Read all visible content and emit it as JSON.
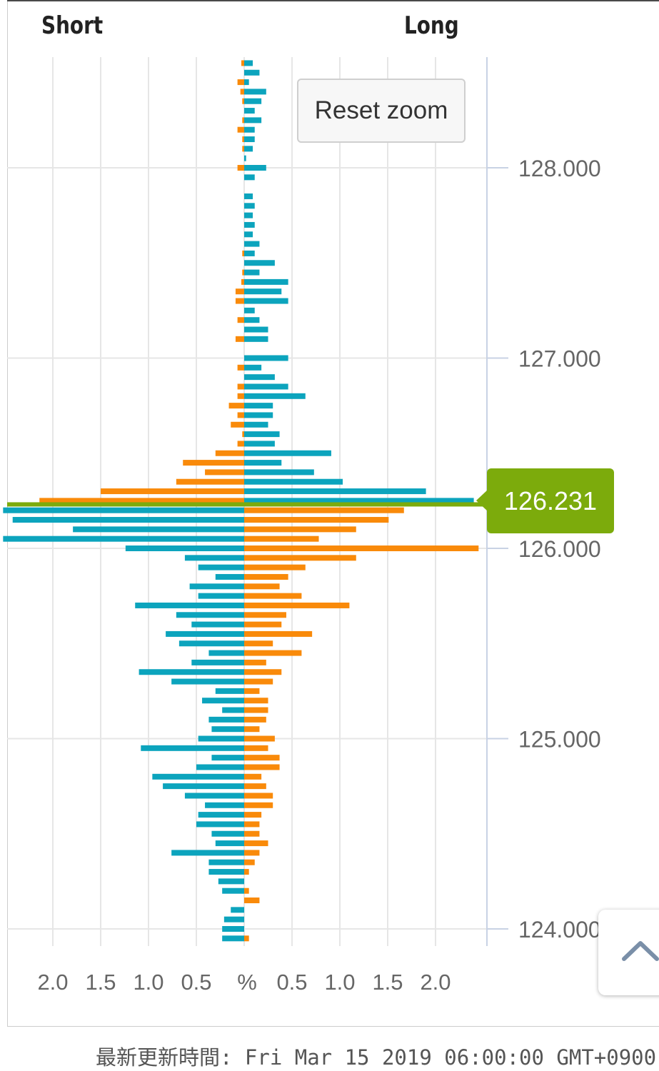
{
  "header": {
    "short_label": "Short",
    "long_label": "Long"
  },
  "reset_zoom_label": "Reset zoom",
  "current_price": "126.231",
  "footer": {
    "updated_text": "最新更新時間: Fri Mar 15 2019 06:00:00 GMT+0900"
  },
  "colors": {
    "long_orders": "#0ca4bd",
    "short_orders": "#f98a0a",
    "price_line": "#7cab0c",
    "grid": "#e6e6e6"
  },
  "chart_data": {
    "type": "bar",
    "orientation": "horizontal-butterfly",
    "y_axis": {
      "ticks": [
        "128.000",
        "127.000",
        "126.000",
        "125.000",
        "124.000"
      ],
      "range": [
        123.95,
        128.58
      ]
    },
    "x_axis": {
      "ticks_left": [
        "2.0",
        "1.5",
        "1.0",
        "0.5"
      ],
      "center_label": "%",
      "ticks_right": [
        "0.5",
        "1.0",
        "1.5",
        "2.0"
      ]
    },
    "current_price": 126.231,
    "series": [
      {
        "name": "Short",
        "side": "left",
        "points": [
          [
            128.55,
            0.0,
            0.03
          ],
          [
            128.5,
            0.0,
            0.0
          ],
          [
            128.45,
            0.0,
            0.07
          ],
          [
            128.4,
            0.0,
            0.04
          ],
          [
            128.35,
            0.0,
            0.02
          ],
          [
            128.3,
            0.0,
            0.0
          ],
          [
            128.25,
            0.0,
            0.02
          ],
          [
            128.2,
            0.0,
            0.07
          ],
          [
            128.15,
            0.0,
            0.02
          ],
          [
            128.1,
            0.0,
            0.02
          ],
          [
            128.05,
            0.0,
            0.0
          ],
          [
            128.0,
            0.0,
            0.07
          ],
          [
            127.95,
            0.0,
            0.0
          ],
          [
            127.85,
            0.0,
            0.0
          ],
          [
            127.8,
            0.0,
            0.0
          ],
          [
            127.75,
            0.0,
            0.0
          ],
          [
            127.7,
            0.0,
            0.0
          ],
          [
            127.65,
            0.0,
            0.0
          ],
          [
            127.6,
            0.0,
            0.0
          ],
          [
            127.55,
            0.0,
            0.02
          ],
          [
            127.5,
            0.0,
            0.0
          ],
          [
            127.45,
            0.0,
            0.02
          ],
          [
            127.4,
            0.0,
            0.03
          ],
          [
            127.35,
            0.0,
            0.09
          ],
          [
            127.3,
            0.0,
            0.09
          ],
          [
            127.25,
            0.0,
            0.0
          ],
          [
            127.2,
            0.0,
            0.07
          ],
          [
            127.15,
            0.0,
            0.0
          ],
          [
            127.1,
            0.0,
            0.09
          ],
          [
            127.0,
            0.0,
            0.0
          ],
          [
            126.95,
            0.0,
            0.07
          ],
          [
            126.9,
            0.0,
            0.0
          ],
          [
            126.85,
            0.0,
            0.07
          ],
          [
            126.8,
            0.0,
            0.07
          ],
          [
            126.75,
            0.0,
            0.16
          ],
          [
            126.7,
            0.0,
            0.07
          ],
          [
            126.65,
            0.0,
            0.14
          ],
          [
            126.6,
            0.0,
            0.02
          ],
          [
            126.55,
            0.0,
            0.07
          ],
          [
            126.5,
            0.0,
            0.3
          ],
          [
            126.45,
            0.0,
            0.64
          ],
          [
            126.4,
            0.0,
            0.41
          ],
          [
            126.35,
            0.0,
            0.71
          ],
          [
            126.3,
            0.0,
            1.5
          ],
          [
            126.25,
            0.0,
            2.14
          ],
          [
            126.2,
            2.52,
            0.0
          ],
          [
            126.15,
            2.42,
            0.0
          ],
          [
            126.1,
            1.79,
            0.0
          ],
          [
            126.05,
            2.52,
            0.0
          ],
          [
            126.0,
            1.24,
            0.0
          ],
          [
            125.95,
            0.62,
            0.0
          ],
          [
            125.9,
            0.48,
            0.0
          ],
          [
            125.85,
            0.3,
            0.0
          ],
          [
            125.8,
            0.57,
            0.0
          ],
          [
            125.75,
            0.48,
            0.0
          ],
          [
            125.7,
            1.14,
            0.0
          ],
          [
            125.65,
            0.71,
            0.0
          ],
          [
            125.6,
            0.55,
            0.0
          ],
          [
            125.55,
            0.82,
            0.0
          ],
          [
            125.5,
            0.68,
            0.0
          ],
          [
            125.45,
            0.37,
            0.0
          ],
          [
            125.4,
            0.55,
            0.0
          ],
          [
            125.35,
            1.1,
            0.0
          ],
          [
            125.3,
            0.76,
            0.0
          ],
          [
            125.25,
            0.3,
            0.0
          ],
          [
            125.2,
            0.44,
            0.0
          ],
          [
            125.15,
            0.23,
            0.0
          ],
          [
            125.1,
            0.37,
            0.0
          ],
          [
            125.05,
            0.34,
            0.0
          ],
          [
            125.0,
            0.48,
            0.0
          ],
          [
            124.95,
            1.08,
            0.0
          ],
          [
            124.9,
            0.34,
            0.0
          ],
          [
            124.85,
            0.5,
            0.0
          ],
          [
            124.8,
            0.96,
            0.0
          ],
          [
            124.75,
            0.85,
            0.0
          ],
          [
            124.7,
            0.62,
            0.0
          ],
          [
            124.65,
            0.41,
            0.0
          ],
          [
            124.6,
            0.48,
            0.0
          ],
          [
            124.55,
            0.5,
            0.0
          ],
          [
            124.5,
            0.34,
            0.0
          ],
          [
            124.45,
            0.3,
            0.0
          ],
          [
            124.4,
            0.76,
            0.0
          ],
          [
            124.35,
            0.37,
            0.0
          ],
          [
            124.3,
            0.37,
            0.0
          ],
          [
            124.25,
            0.27,
            0.0
          ],
          [
            124.2,
            0.23,
            0.0
          ],
          [
            124.1,
            0.14,
            0.0
          ],
          [
            124.05,
            0.21,
            0.0
          ],
          [
            124.0,
            0.23,
            0.0
          ],
          [
            123.95,
            0.23,
            0.0
          ]
        ]
      },
      {
        "name": "Long",
        "side": "right",
        "points": [
          [
            128.55,
            0.09,
            0.0
          ],
          [
            128.5,
            0.16,
            0.0
          ],
          [
            128.45,
            0.05,
            0.0
          ],
          [
            128.4,
            0.23,
            0.0
          ],
          [
            128.35,
            0.18,
            0.0
          ],
          [
            128.3,
            0.11,
            0.0
          ],
          [
            128.25,
            0.18,
            0.0
          ],
          [
            128.2,
            0.11,
            0.0
          ],
          [
            128.15,
            0.11,
            0.0
          ],
          [
            128.1,
            0.09,
            0.0
          ],
          [
            128.05,
            0.02,
            0.0
          ],
          [
            128.0,
            0.23,
            0.0
          ],
          [
            127.95,
            0.11,
            0.0
          ],
          [
            127.85,
            0.09,
            0.0
          ],
          [
            127.8,
            0.11,
            0.0
          ],
          [
            127.75,
            0.09,
            0.0
          ],
          [
            127.7,
            0.11,
            0.0
          ],
          [
            127.65,
            0.09,
            0.0
          ],
          [
            127.6,
            0.16,
            0.0
          ],
          [
            127.55,
            0.11,
            0.0
          ],
          [
            127.5,
            0.32,
            0.0
          ],
          [
            127.45,
            0.16,
            0.0
          ],
          [
            127.4,
            0.46,
            0.0
          ],
          [
            127.35,
            0.39,
            0.0
          ],
          [
            127.3,
            0.46,
            0.0
          ],
          [
            127.25,
            0.11,
            0.0
          ],
          [
            127.2,
            0.16,
            0.0
          ],
          [
            127.15,
            0.25,
            0.0
          ],
          [
            127.1,
            0.25,
            0.0
          ],
          [
            127.0,
            0.46,
            0.0
          ],
          [
            126.95,
            0.18,
            0.0
          ],
          [
            126.9,
            0.32,
            0.0
          ],
          [
            126.85,
            0.46,
            0.0
          ],
          [
            126.8,
            0.64,
            0.0
          ],
          [
            126.75,
            0.3,
            0.0
          ],
          [
            126.7,
            0.3,
            0.0
          ],
          [
            126.65,
            0.25,
            0.0
          ],
          [
            126.6,
            0.37,
            0.0
          ],
          [
            126.55,
            0.32,
            0.0
          ],
          [
            126.5,
            0.91,
            0.0
          ],
          [
            126.45,
            0.39,
            0.0
          ],
          [
            126.4,
            0.73,
            0.0
          ],
          [
            126.35,
            1.03,
            0.0
          ],
          [
            126.3,
            1.9,
            0.0
          ],
          [
            126.25,
            2.4,
            0.0
          ],
          [
            126.2,
            0.0,
            1.67
          ],
          [
            126.15,
            0.0,
            1.51
          ],
          [
            126.1,
            0.0,
            1.17
          ],
          [
            126.05,
            0.0,
            0.78
          ],
          [
            126.0,
            0.0,
            2.45
          ],
          [
            125.95,
            0.0,
            1.17
          ],
          [
            125.9,
            0.0,
            0.64
          ],
          [
            125.85,
            0.0,
            0.46
          ],
          [
            125.8,
            0.0,
            0.37
          ],
          [
            125.75,
            0.0,
            0.6
          ],
          [
            125.7,
            0.0,
            1.1
          ],
          [
            125.65,
            0.0,
            0.44
          ],
          [
            125.6,
            0.0,
            0.39
          ],
          [
            125.55,
            0.0,
            0.71
          ],
          [
            125.5,
            0.0,
            0.3
          ],
          [
            125.45,
            0.0,
            0.6
          ],
          [
            125.4,
            0.0,
            0.23
          ],
          [
            125.35,
            0.0,
            0.39
          ],
          [
            125.3,
            0.0,
            0.3
          ],
          [
            125.25,
            0.0,
            0.16
          ],
          [
            125.2,
            0.0,
            0.25
          ],
          [
            125.15,
            0.0,
            0.25
          ],
          [
            125.1,
            0.0,
            0.23
          ],
          [
            125.05,
            0.0,
            0.16
          ],
          [
            125.0,
            0.0,
            0.32
          ],
          [
            124.95,
            0.0,
            0.25
          ],
          [
            124.9,
            0.0,
            0.37
          ],
          [
            124.85,
            0.0,
            0.37
          ],
          [
            124.8,
            0.0,
            0.18
          ],
          [
            124.75,
            0.0,
            0.23
          ],
          [
            124.7,
            0.0,
            0.3
          ],
          [
            124.65,
            0.0,
            0.3
          ],
          [
            124.6,
            0.0,
            0.18
          ],
          [
            124.55,
            0.0,
            0.16
          ],
          [
            124.5,
            0.0,
            0.16
          ],
          [
            124.45,
            0.0,
            0.25
          ],
          [
            124.4,
            0.0,
            0.16
          ],
          [
            124.35,
            0.0,
            0.11
          ],
          [
            124.3,
            0.0,
            0.05
          ],
          [
            124.25,
            0.0,
            0.0
          ],
          [
            124.2,
            0.0,
            0.05
          ],
          [
            124.15,
            0.0,
            0.16
          ],
          [
            124.0,
            0.0,
            0.0
          ],
          [
            123.95,
            0.0,
            0.05
          ]
        ]
      }
    ]
  }
}
